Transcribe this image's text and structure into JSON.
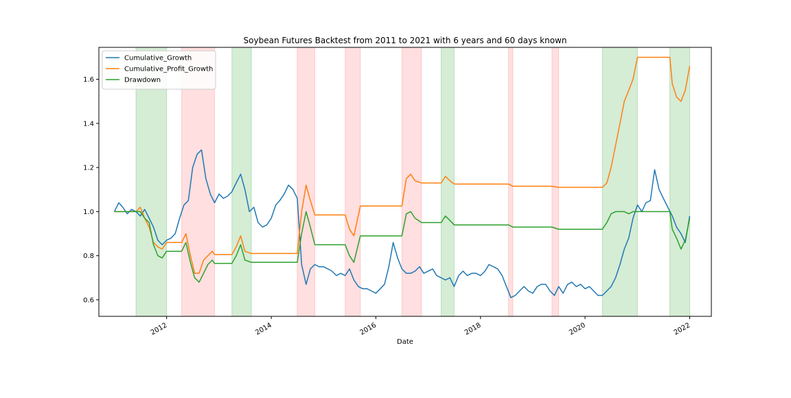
{
  "chart_data": {
    "type": "line",
    "title": "Soybean Futures Backtest from 2011 to 2021 with 6 years and 60 days known",
    "xlabel": "Date",
    "ylabel": "",
    "xlim": [
      "2010-09-15",
      "2022-06-01"
    ],
    "ylim": [
      0.525,
      1.745
    ],
    "x_ticks": [
      {
        "date": "2012-01-01",
        "label": "2012"
      },
      {
        "date": "2014-01-01",
        "label": "2014"
      },
      {
        "date": "2016-01-01",
        "label": "2016"
      },
      {
        "date": "2018-01-01",
        "label": "2018"
      },
      {
        "date": "2020-01-01",
        "label": "2020"
      },
      {
        "date": "2022-01-01",
        "label": "2022"
      }
    ],
    "y_ticks": [
      {
        "value": 0.6,
        "label": "0.6"
      },
      {
        "value": 0.8,
        "label": "0.8"
      },
      {
        "value": 1.0,
        "label": "1.0"
      },
      {
        "value": 1.2,
        "label": "1.2"
      },
      {
        "value": 1.4,
        "label": "1.4"
      },
      {
        "value": 1.6,
        "label": "1.6"
      }
    ],
    "grid": false,
    "legend_position": "top-left",
    "shaded_regions": [
      {
        "start": "2011-06-01",
        "end": "2012-01-01",
        "kind": "long",
        "color": "#2ca02c"
      },
      {
        "start": "2012-04-15",
        "end": "2012-12-01",
        "kind": "short",
        "color": "#ff5f5f"
      },
      {
        "start": "2013-04-01",
        "end": "2013-08-15",
        "kind": "long",
        "color": "#2ca02c"
      },
      {
        "start": "2014-07-01",
        "end": "2014-11-01",
        "kind": "short",
        "color": "#ff5f5f"
      },
      {
        "start": "2015-06-01",
        "end": "2015-09-15",
        "kind": "short",
        "color": "#ff5f5f"
      },
      {
        "start": "2016-07-01",
        "end": "2016-11-15",
        "kind": "short",
        "color": "#ff5f5f"
      },
      {
        "start": "2017-04-01",
        "end": "2017-07-01",
        "kind": "long",
        "color": "#2ca02c"
      },
      {
        "start": "2018-07-15",
        "end": "2018-08-15",
        "kind": "short",
        "color": "#ff5f5f"
      },
      {
        "start": "2019-05-15",
        "end": "2019-07-01",
        "kind": "short",
        "color": "#ff5f5f"
      },
      {
        "start": "2020-05-01",
        "end": "2021-01-01",
        "kind": "long",
        "color": "#2ca02c"
      },
      {
        "start": "2021-08-15",
        "end": "2022-01-01",
        "kind": "long",
        "color": "#2ca02c"
      }
    ],
    "series": [
      {
        "name": "Cumulative_Growth",
        "color": "#1f77b4",
        "x": [
          "2011-01-01",
          "2011-02-01",
          "2011-03-01",
          "2011-04-01",
          "2011-05-01",
          "2011-06-01",
          "2011-07-01",
          "2011-08-01",
          "2011-09-01",
          "2011-10-01",
          "2011-11-01",
          "2011-12-01",
          "2012-01-01",
          "2012-02-01",
          "2012-03-01",
          "2012-04-01",
          "2012-05-01",
          "2012-06-01",
          "2012-07-01",
          "2012-08-01",
          "2012-09-01",
          "2012-10-01",
          "2012-11-01",
          "2012-12-01",
          "2013-01-01",
          "2013-02-01",
          "2013-03-01",
          "2013-04-01",
          "2013-05-01",
          "2013-06-01",
          "2013-07-01",
          "2013-08-01",
          "2013-09-01",
          "2013-10-01",
          "2013-11-01",
          "2013-12-01",
          "2014-01-01",
          "2014-02-01",
          "2014-03-01",
          "2014-04-01",
          "2014-05-01",
          "2014-06-01",
          "2014-07-01",
          "2014-08-01",
          "2014-09-01",
          "2014-10-01",
          "2014-11-01",
          "2014-12-01",
          "2015-01-01",
          "2015-02-01",
          "2015-03-01",
          "2015-04-01",
          "2015-05-01",
          "2015-06-01",
          "2015-07-01",
          "2015-08-01",
          "2015-09-01",
          "2015-10-01",
          "2015-11-01",
          "2015-12-01",
          "2016-01-01",
          "2016-02-01",
          "2016-03-01",
          "2016-04-01",
          "2016-05-01",
          "2016-06-01",
          "2016-07-01",
          "2016-08-01",
          "2016-09-01",
          "2016-10-01",
          "2016-11-01",
          "2016-12-01",
          "2017-01-01",
          "2017-02-01",
          "2017-03-01",
          "2017-04-01",
          "2017-05-01",
          "2017-06-01",
          "2017-07-01",
          "2017-08-01",
          "2017-09-01",
          "2017-10-01",
          "2017-11-01",
          "2017-12-01",
          "2018-01-01",
          "2018-02-01",
          "2018-03-01",
          "2018-04-01",
          "2018-05-01",
          "2018-06-01",
          "2018-07-01",
          "2018-08-01",
          "2018-09-01",
          "2018-10-01",
          "2018-11-01",
          "2018-12-01",
          "2019-01-01",
          "2019-02-01",
          "2019-03-01",
          "2019-04-01",
          "2019-05-01",
          "2019-06-01",
          "2019-07-01",
          "2019-08-01",
          "2019-09-01",
          "2019-10-01",
          "2019-11-01",
          "2019-12-01",
          "2020-01-01",
          "2020-02-01",
          "2020-03-01",
          "2020-04-01",
          "2020-05-01",
          "2020-06-01",
          "2020-07-01",
          "2020-08-01",
          "2020-09-01",
          "2020-10-01",
          "2020-11-01",
          "2020-12-01",
          "2021-01-01",
          "2021-02-01",
          "2021-03-01",
          "2021-04-01",
          "2021-05-01",
          "2021-06-01",
          "2021-07-01",
          "2021-08-01",
          "2021-09-01",
          "2021-10-01",
          "2021-11-01",
          "2021-12-01",
          "2022-01-01"
        ],
        "y": [
          1.0,
          1.04,
          1.02,
          0.99,
          1.01,
          1.0,
          0.98,
          1.01,
          0.97,
          0.93,
          0.87,
          0.85,
          0.87,
          0.88,
          0.9,
          0.97,
          1.03,
          1.05,
          1.2,
          1.26,
          1.28,
          1.15,
          1.08,
          1.04,
          1.08,
          1.06,
          1.07,
          1.09,
          1.13,
          1.17,
          1.1,
          1.0,
          1.02,
          0.95,
          0.93,
          0.94,
          0.97,
          1.03,
          1.05,
          1.08,
          1.12,
          1.1,
          1.06,
          0.76,
          0.67,
          0.74,
          0.76,
          0.75,
          0.75,
          0.74,
          0.73,
          0.71,
          0.72,
          0.71,
          0.74,
          0.69,
          0.66,
          0.65,
          0.65,
          0.64,
          0.63,
          0.65,
          0.67,
          0.75,
          0.86,
          0.79,
          0.74,
          0.72,
          0.72,
          0.73,
          0.75,
          0.72,
          0.73,
          0.74,
          0.71,
          0.7,
          0.69,
          0.7,
          0.66,
          0.71,
          0.73,
          0.71,
          0.72,
          0.72,
          0.71,
          0.73,
          0.76,
          0.75,
          0.74,
          0.71,
          0.66,
          0.61,
          0.62,
          0.64,
          0.66,
          0.64,
          0.63,
          0.66,
          0.67,
          0.67,
          0.64,
          0.62,
          0.66,
          0.63,
          0.67,
          0.68,
          0.66,
          0.67,
          0.65,
          0.66,
          0.64,
          0.62,
          0.62,
          0.64,
          0.66,
          0.7,
          0.76,
          0.83,
          0.88,
          0.97,
          1.03,
          1.0,
          1.04,
          1.05,
          1.19,
          1.1,
          1.06,
          1.02,
          0.98,
          0.93,
          0.9,
          0.86,
          0.98
        ]
      },
      {
        "name": "Cumulative_Profit_Growth",
        "color": "#ff7f0e",
        "x": [
          "2011-01-01",
          "2011-03-01",
          "2011-05-01",
          "2011-06-01",
          "2011-07-01",
          "2011-08-01",
          "2011-09-01",
          "2011-10-01",
          "2011-11-01",
          "2011-12-01",
          "2012-01-01",
          "2012-04-15",
          "2012-05-15",
          "2012-06-15",
          "2012-07-15",
          "2012-08-15",
          "2012-09-15",
          "2012-10-15",
          "2012-11-15",
          "2012-12-01",
          "2013-04-01",
          "2013-05-01",
          "2013-06-01",
          "2013-07-01",
          "2013-08-15",
          "2014-07-01",
          "2014-08-01",
          "2014-09-01",
          "2014-10-01",
          "2014-11-01",
          "2015-06-01",
          "2015-07-01",
          "2015-08-01",
          "2015-09-15",
          "2016-07-01",
          "2016-08-01",
          "2016-09-01",
          "2016-10-01",
          "2016-11-15",
          "2017-04-01",
          "2017-05-01",
          "2017-06-01",
          "2017-07-01",
          "2018-07-15",
          "2018-08-15",
          "2019-05-15",
          "2019-07-01",
          "2020-05-01",
          "2020-06-01",
          "2020-07-01",
          "2020-08-01",
          "2020-09-01",
          "2020-10-01",
          "2020-11-01",
          "2020-12-01",
          "2021-01-01",
          "2021-08-15",
          "2021-09-01",
          "2021-10-01",
          "2021-11-01",
          "2021-12-01",
          "2022-01-01"
        ],
        "y": [
          1.0,
          1.0,
          1.0,
          1.0,
          1.02,
          0.97,
          0.93,
          0.86,
          0.84,
          0.83,
          0.86,
          0.86,
          0.9,
          0.8,
          0.72,
          0.72,
          0.78,
          0.8,
          0.82,
          0.805,
          0.805,
          0.84,
          0.89,
          0.82,
          0.81,
          0.81,
          1.0,
          1.12,
          1.05,
          0.985,
          0.985,
          0.92,
          0.89,
          1.025,
          1.025,
          1.15,
          1.17,
          1.14,
          1.13,
          1.13,
          1.16,
          1.14,
          1.125,
          1.125,
          1.115,
          1.115,
          1.11,
          1.11,
          1.13,
          1.2,
          1.3,
          1.4,
          1.5,
          1.55,
          1.6,
          1.7,
          1.7,
          1.58,
          1.52,
          1.5,
          1.55,
          1.66
        ]
      },
      {
        "name": "Drawdown",
        "color": "#2ca02c",
        "x": [
          "2011-01-01",
          "2011-03-01",
          "2011-05-01",
          "2011-06-01",
          "2011-07-01",
          "2011-08-01",
          "2011-09-01",
          "2011-10-01",
          "2011-11-01",
          "2011-12-01",
          "2012-01-01",
          "2012-04-15",
          "2012-05-15",
          "2012-06-15",
          "2012-07-15",
          "2012-08-15",
          "2012-09-15",
          "2012-10-15",
          "2012-11-15",
          "2012-12-01",
          "2013-04-01",
          "2013-05-01",
          "2013-06-01",
          "2013-07-01",
          "2013-08-15",
          "2014-07-01",
          "2014-08-01",
          "2014-09-01",
          "2014-10-01",
          "2014-11-01",
          "2015-06-01",
          "2015-07-01",
          "2015-08-01",
          "2015-09-15",
          "2016-07-01",
          "2016-08-01",
          "2016-09-01",
          "2016-10-01",
          "2016-11-15",
          "2017-04-01",
          "2017-05-01",
          "2017-06-01",
          "2017-07-01",
          "2018-07-15",
          "2018-08-15",
          "2019-05-15",
          "2019-07-01",
          "2020-05-01",
          "2020-06-01",
          "2020-07-01",
          "2020-08-01",
          "2020-09-01",
          "2020-10-01",
          "2020-11-01",
          "2020-12-01",
          "2021-01-01",
          "2021-08-15",
          "2021-09-01",
          "2021-10-01",
          "2021-11-01",
          "2021-12-01",
          "2022-01-01"
        ],
        "y": [
          1.0,
          1.0,
          1.0,
          1.0,
          1.0,
          0.97,
          0.95,
          0.85,
          0.8,
          0.79,
          0.82,
          0.82,
          0.86,
          0.77,
          0.7,
          0.68,
          0.72,
          0.76,
          0.78,
          0.765,
          0.765,
          0.8,
          0.85,
          0.78,
          0.77,
          0.77,
          0.9,
          1.0,
          0.93,
          0.85,
          0.85,
          0.8,
          0.77,
          0.89,
          0.89,
          0.99,
          1.0,
          0.97,
          0.95,
          0.95,
          0.98,
          0.96,
          0.94,
          0.94,
          0.93,
          0.93,
          0.92,
          0.92,
          0.95,
          0.99,
          1.0,
          1.0,
          1.0,
          0.99,
          1.0,
          1.0,
          1.0,
          0.92,
          0.88,
          0.83,
          0.87,
          0.97
        ]
      }
    ]
  }
}
